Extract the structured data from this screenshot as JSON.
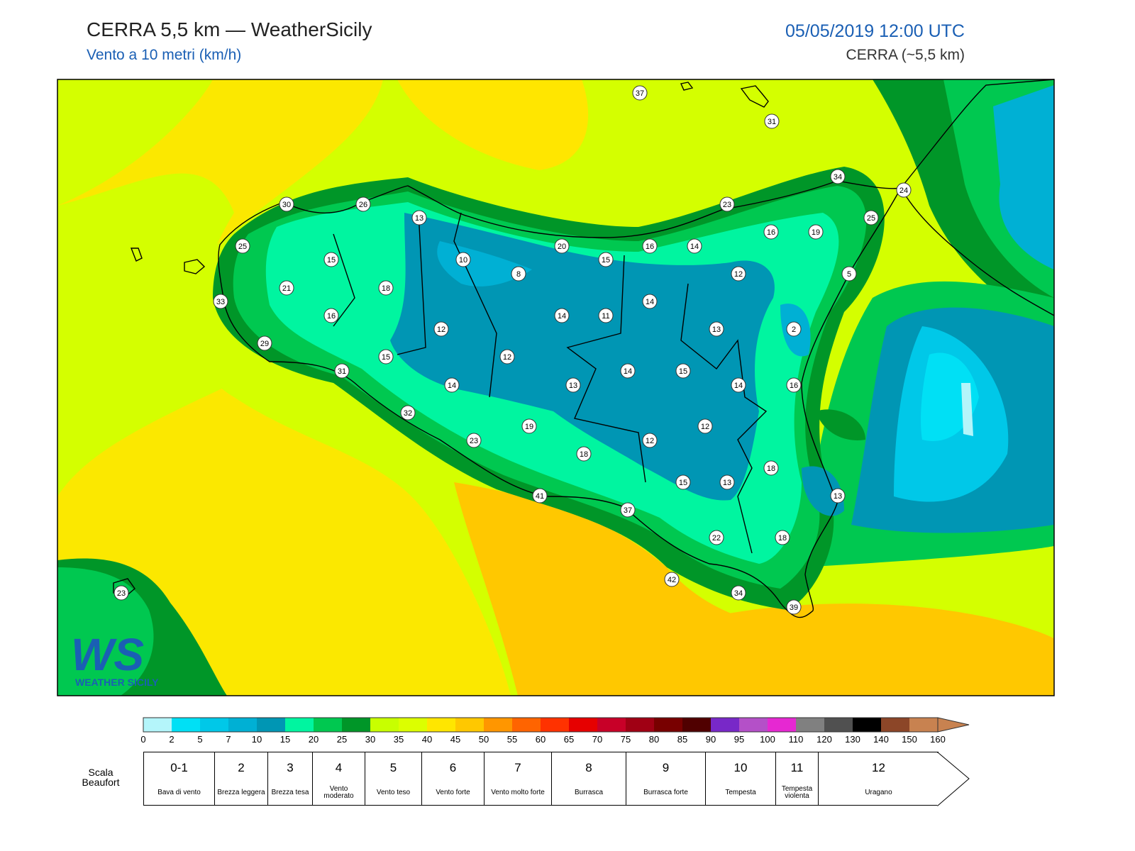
{
  "header": {
    "title": "CERRA 5,5 km — WeatherSicily",
    "subtitle": "Vento a 10 metri (km/h)",
    "datetime": "05/05/2019 12:00 UTC",
    "model": "CERRA (~5,5 km)"
  },
  "stations": [
    37,
    31,
    34,
    24,
    30,
    26,
    13,
    23,
    25,
    16,
    19,
    25,
    15,
    20,
    15,
    16,
    14,
    10,
    8,
    12,
    5,
    21,
    18,
    33,
    16,
    14,
    11,
    14,
    13,
    2,
    12,
    29,
    15,
    12,
    31,
    14,
    13,
    14,
    15,
    14,
    16,
    32,
    19,
    12,
    23,
    18,
    12,
    18,
    15,
    13,
    13,
    41,
    37,
    22,
    18,
    42,
    34,
    39,
    23
  ],
  "logo": {
    "letters": "WS",
    "text": "WEATHER SICILY"
  },
  "colorbar": {
    "ticks": [
      0,
      2,
      5,
      7,
      10,
      15,
      20,
      25,
      30,
      35,
      40,
      45,
      50,
      55,
      60,
      65,
      70,
      75,
      80,
      85,
      90,
      95,
      100,
      110,
      120,
      130,
      140,
      150,
      160
    ],
    "colors": [
      "#b4f5fa",
      "#00e0f5",
      "#00c8e8",
      "#00b0d4",
      "#0096b4",
      "#00f5a0",
      "#00c850",
      "#009628",
      "#c8ff00",
      "#dcff00",
      "#ffe600",
      "#ffc800",
      "#ff9600",
      "#ff6400",
      "#ff3200",
      "#e60000",
      "#c80028",
      "#a00014",
      "#780000",
      "#500000",
      "#7828c8",
      "#b450c8",
      "#e628d2",
      "#808080",
      "#505050",
      "#000000",
      "#8c4628",
      "#c88250"
    ]
  },
  "beaufort": {
    "label": "Scala Beaufort",
    "levels": [
      {
        "force": "0-1",
        "desc": "Bava di vento"
      },
      {
        "force": "2",
        "desc": "Brezza leggera"
      },
      {
        "force": "3",
        "desc": "Brezza tesa"
      },
      {
        "force": "4",
        "desc": "Vento moderato"
      },
      {
        "force": "5",
        "desc": "Vento teso"
      },
      {
        "force": "6",
        "desc": "Vento forte"
      },
      {
        "force": "7",
        "desc": "Vento molto forte"
      },
      {
        "force": "8",
        "desc": "Burrasca"
      },
      {
        "force": "9",
        "desc": "Burrasca forte"
      },
      {
        "force": "10",
        "desc": "Tempesta"
      },
      {
        "force": "11",
        "desc": "Tempesta violenta"
      },
      {
        "force": "12",
        "desc": "Uragano"
      }
    ]
  }
}
